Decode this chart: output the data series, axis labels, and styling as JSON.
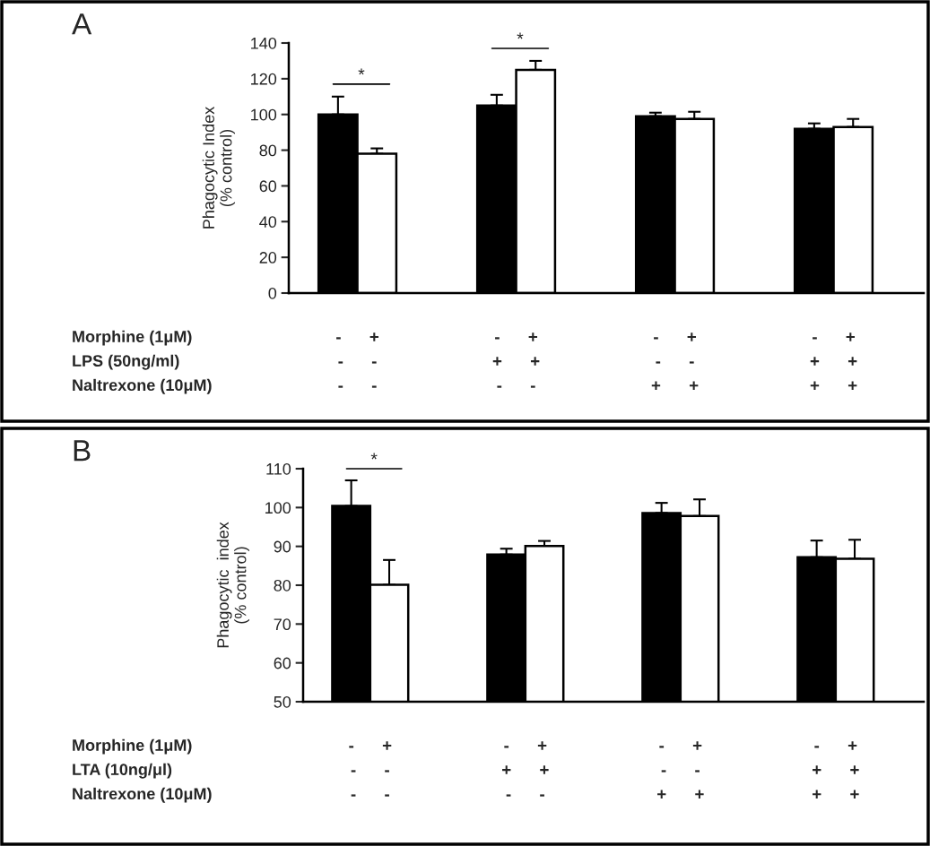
{
  "chart_data": [
    {
      "type": "bar",
      "title": "A",
      "ylabel": "Phagocytic Index\n(% control)",
      "categories": [
        null,
        null,
        null,
        null
      ],
      "series": [
        {
          "color": "#000000",
          "values": [
            100,
            105,
            99,
            92
          ],
          "errors": [
            [
              100,
              110
            ],
            [
              105,
              111
            ],
            [
              99,
              101
            ],
            [
              92,
              95
            ]
          ]
        },
        {
          "color": "#ffffff",
          "values": [
            78,
            125,
            97.5,
            93
          ],
          "errors": [
            [
              78,
              81
            ],
            [
              125,
              130
            ],
            [
              97.5,
              101.5
            ],
            [
              93,
              97.5
            ]
          ]
        }
      ],
      "ylim": [
        0,
        140
      ],
      "yticks": [
        0,
        20,
        40,
        60,
        80,
        100,
        120,
        140
      ],
      "annotations": [
        "Morphine (1μM)",
        "-      +",
        "-      +",
        "-      +",
        "-      +",
        "LPS (50ng/ml)",
        "-      -",
        "+      +",
        "-      -",
        "+      +",
        "Naltrexone (10μM)",
        "-      -",
        "-      -",
        "+      +",
        "+      +",
        "*",
        "*"
      ]
    },
    {
      "type": "bar",
      "title": "B",
      "ylabel": "Phagocytic  index\n(% control)",
      "categories": [
        null,
        null,
        null,
        null
      ],
      "series": [
        {
          "color": "#000000",
          "values": [
            100.4,
            87.9,
            98.6,
            87.2
          ],
          "errors": [
            [
              100.4,
              107
            ],
            [
              87.9,
              89.4
            ],
            [
              98.6,
              101.2
            ],
            [
              87.2,
              91.5
            ]
          ]
        },
        {
          "color": "#ffffff",
          "values": [
            80.1,
            90.1,
            97.8,
            86.8
          ],
          "errors": [
            [
              80.1,
              86.5
            ],
            [
              90.1,
              91.4
            ],
            [
              97.8,
              102.1
            ],
            [
              86.8,
              91.7
            ]
          ]
        }
      ],
      "ylim": [
        50,
        110
      ],
      "yticks": [
        50,
        60,
        70,
        80,
        90,
        100,
        110
      ],
      "annotations": [
        "Morphine (1μM)",
        "-      +",
        "-      +",
        "-      +",
        "-      +",
        "LTA (10ng/μl)",
        "-      -",
        "+      +",
        "-      -",
        "+      +",
        "Naltrexone (10μM)",
        "-      -",
        "-      -",
        "+      +",
        "+      +",
        "*"
      ]
    }
  ]
}
